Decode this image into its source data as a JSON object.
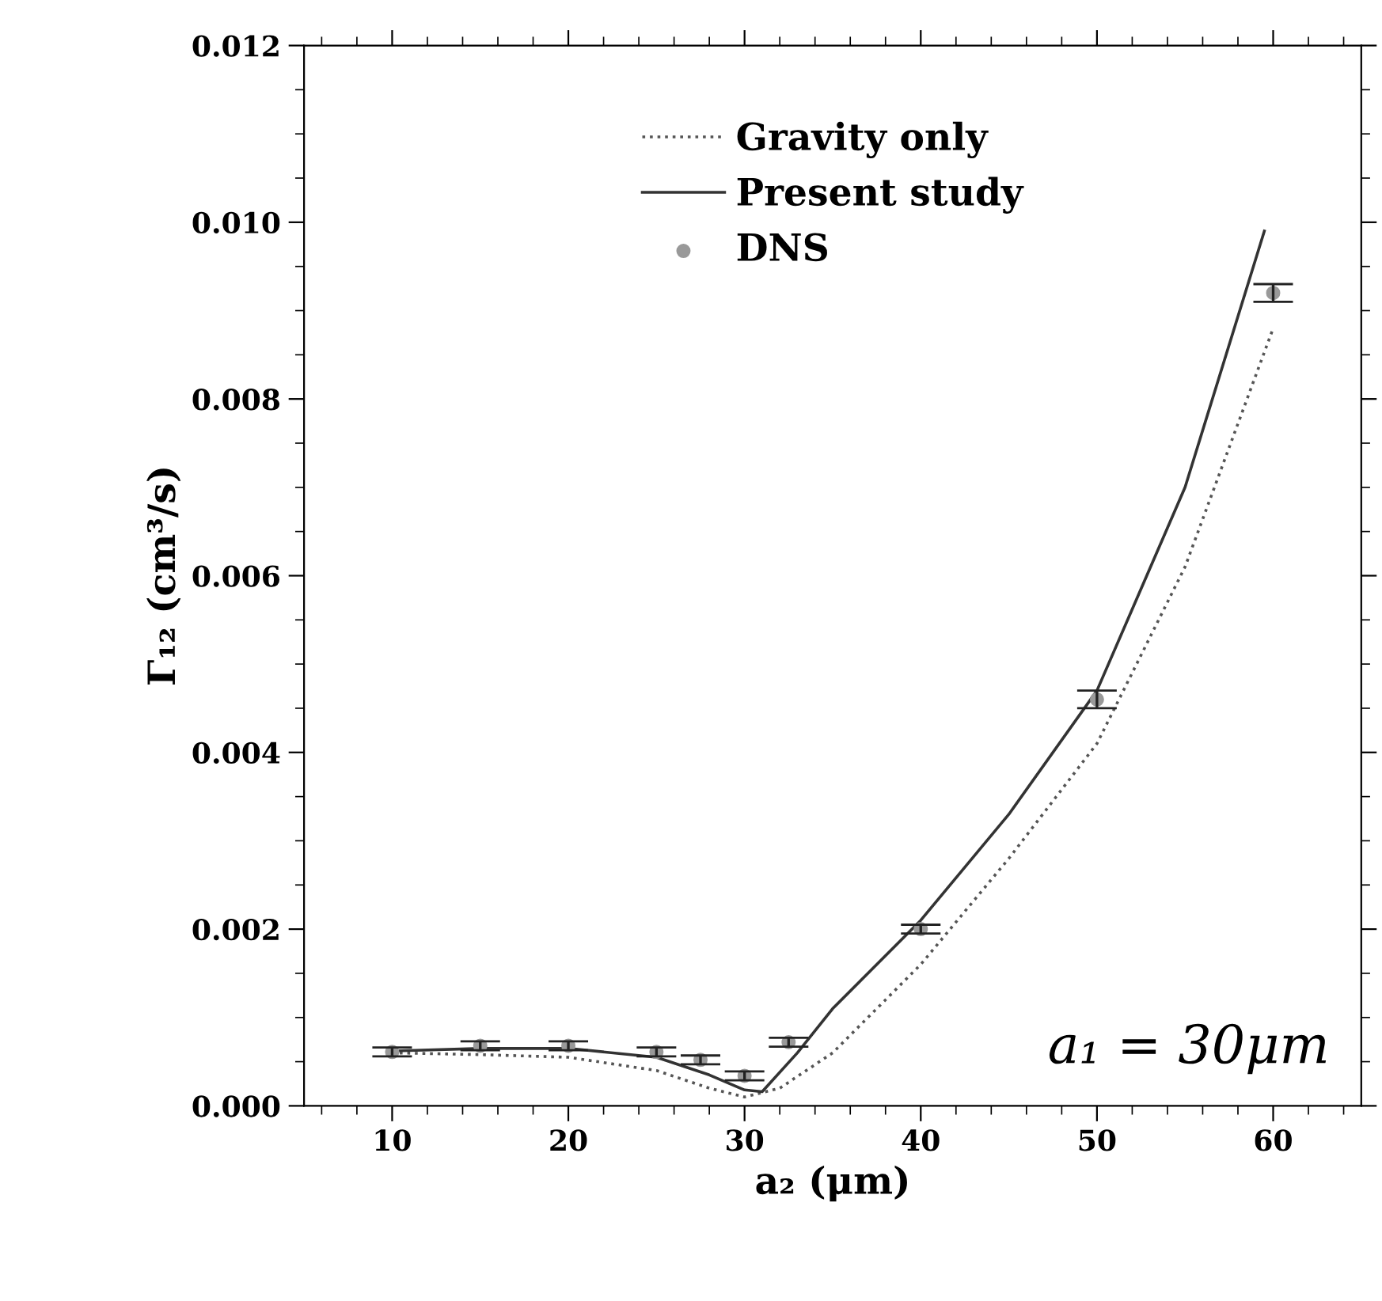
{
  "chart_data": {
    "type": "line",
    "xlabel": "a₂ (μm)",
    "ylabel": "Γ₁₂ (cm³/s)",
    "xlim": [
      5,
      65
    ],
    "xticks": [
      10,
      20,
      30,
      40,
      50,
      60
    ],
    "ylim": [
      0,
      0.012
    ],
    "yticks": [
      {
        "value": 0,
        "label": "0.000"
      },
      {
        "value": 0.002,
        "label": "0.002"
      },
      {
        "value": 0.004,
        "label": "0.004"
      },
      {
        "value": 0.006,
        "label": "0.006"
      },
      {
        "value": 0.008,
        "label": "0.008"
      },
      {
        "value": 0.01,
        "label": "0.010"
      },
      {
        "value": 0.012,
        "label": "0.012"
      }
    ],
    "grid": false,
    "legend": "top",
    "annotations": [
      "a₁ = 30μm"
    ],
    "series": [
      {
        "name": "Gravity only",
        "line_style": "dotted",
        "color": "#555555",
        "x": [
          10,
          15,
          20,
          25,
          28,
          30,
          32,
          35,
          40,
          45,
          50,
          55,
          60
        ],
        "values": [
          0.0006,
          0.00058,
          0.00055,
          0.0004,
          0.0002,
          0.0001,
          0.0002,
          0.0006,
          0.0016,
          0.0028,
          0.0041,
          0.0061,
          0.0088
        ]
      },
      {
        "name": "Present study",
        "line_style": "solid",
        "color": "#333333",
        "x": [
          10,
          15,
          20,
          25,
          28,
          30,
          31,
          33,
          35,
          40,
          45,
          50,
          55,
          59.5
        ],
        "values": [
          0.00062,
          0.00065,
          0.00065,
          0.00055,
          0.00035,
          0.00018,
          0.00016,
          0.0006,
          0.0011,
          0.0021,
          0.0033,
          0.0047,
          0.007,
          0.0099
        ]
      },
      {
        "name": "DNS",
        "type": "scatter",
        "marker": "circle",
        "color": "#999999",
        "x": [
          10,
          15,
          20,
          25,
          27.5,
          30,
          32.5,
          40,
          50,
          60
        ],
        "values": [
          0.00061,
          0.00068,
          0.00068,
          0.00061,
          0.00052,
          0.00034,
          0.00072,
          0.002,
          0.0046,
          0.0092
        ],
        "errors": [
          5e-05,
          5e-05,
          5e-05,
          5e-05,
          5e-05,
          5e-05,
          5e-05,
          5e-05,
          0.0001,
          0.0001
        ]
      }
    ]
  }
}
